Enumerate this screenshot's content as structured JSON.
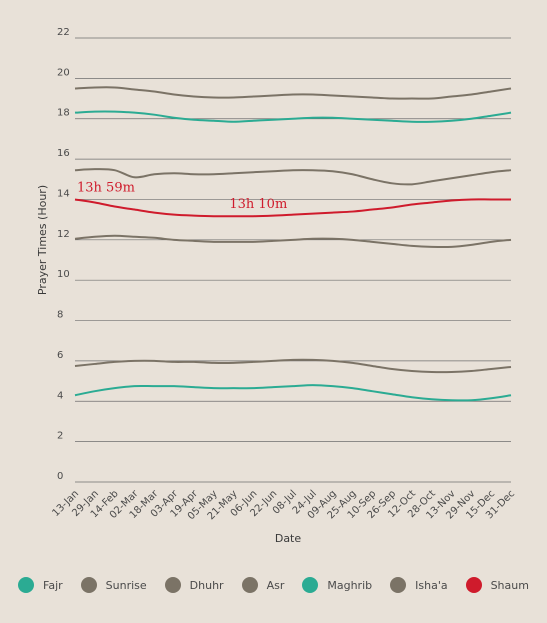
{
  "chart_data": {
    "type": "line",
    "xlabel": "Date",
    "ylabel": "Prayer Times (Hour)",
    "ylim": [
      0,
      22
    ],
    "yticks": [
      "0",
      "2",
      "4",
      "6",
      "8",
      "10",
      "12",
      "14",
      "16",
      "18",
      "20",
      "22"
    ],
    "x": [
      "13-Jan",
      "29-Jan",
      "14-Feb",
      "02-Mar",
      "18-Mar",
      "03-Apr",
      "19-Apr",
      "05-May",
      "21-May",
      "06-Jun",
      "22-Jun",
      "08-Jul",
      "24-Jul",
      "09-Aug",
      "25-Aug",
      "10-Sep",
      "26-Sep",
      "12-Oct",
      "28-Oct",
      "13-Nov",
      "29-Nov",
      "15-Dec",
      "31-Dec"
    ],
    "grid": true,
    "legend_position": "bottom",
    "series": [
      {
        "name": "Fajr",
        "color": "#2bab93",
        "values": [
          4.3,
          4.5,
          4.65,
          4.75,
          4.75,
          4.75,
          4.7,
          4.65,
          4.65,
          4.65,
          4.7,
          4.75,
          4.8,
          4.75,
          4.65,
          4.5,
          4.35,
          4.2,
          4.1,
          4.05,
          4.05,
          4.15,
          4.3
        ]
      },
      {
        "name": "Sunrise",
        "color": "#7b7366",
        "values": [
          5.75,
          5.85,
          5.95,
          6.0,
          6.0,
          5.95,
          5.95,
          5.9,
          5.9,
          5.95,
          6.0,
          6.05,
          6.05,
          6.0,
          5.9,
          5.75,
          5.6,
          5.5,
          5.45,
          5.45,
          5.5,
          5.6,
          5.7
        ]
      },
      {
        "name": "Dhuhr",
        "color": "#7b7366",
        "values": [
          12.05,
          12.15,
          12.2,
          12.15,
          12.1,
          12.0,
          11.95,
          11.9,
          11.9,
          11.9,
          11.95,
          12.0,
          12.05,
          12.05,
          12.0,
          11.9,
          11.8,
          11.7,
          11.65,
          11.65,
          11.75,
          11.9,
          12.0
        ]
      },
      {
        "name": "Asr",
        "color": "#7b7366",
        "values": [
          15.45,
          15.5,
          15.45,
          15.1,
          15.25,
          15.3,
          15.25,
          15.25,
          15.3,
          15.35,
          15.4,
          15.45,
          15.45,
          15.4,
          15.25,
          15.0,
          14.8,
          14.75,
          14.9,
          15.05,
          15.2,
          15.35,
          15.45
        ]
      },
      {
        "name": "Maghrib",
        "color": "#2bab93",
        "values": [
          18.3,
          18.35,
          18.35,
          18.3,
          18.2,
          18.05,
          17.95,
          17.9,
          17.85,
          17.9,
          17.95,
          18.0,
          18.05,
          18.05,
          18.0,
          17.95,
          17.9,
          17.85,
          17.85,
          17.9,
          18.0,
          18.15,
          18.3
        ]
      },
      {
        "name": "Isha'a",
        "color": "#7b7366",
        "values": [
          19.5,
          19.55,
          19.55,
          19.45,
          19.35,
          19.2,
          19.1,
          19.05,
          19.05,
          19.1,
          19.15,
          19.2,
          19.2,
          19.15,
          19.1,
          19.05,
          19.0,
          19.0,
          19.0,
          19.1,
          19.2,
          19.35,
          19.5
        ]
      },
      {
        "name": "Shaum",
        "color": "#cf1b2c",
        "values": [
          14.0,
          13.85,
          13.65,
          13.5,
          13.35,
          13.25,
          13.2,
          13.17,
          13.17,
          13.17,
          13.2,
          13.25,
          13.3,
          13.35,
          13.4,
          13.5,
          13.6,
          13.75,
          13.85,
          13.95,
          14.0,
          14.0,
          14.0
        ]
      }
    ],
    "annotations": [
      {
        "text": "13h 59m",
        "x": "13-Jan",
        "y": 14.0,
        "color": "#cf1b2c"
      },
      {
        "text": "13h 10m",
        "x": "06-Jun",
        "y": 13.17,
        "color": "#cf1b2c"
      }
    ]
  },
  "legend": [
    {
      "label": "Fajr",
      "color": "#2bab93"
    },
    {
      "label": "Sunrise",
      "color": "#7b7366"
    },
    {
      "label": "Dhuhr",
      "color": "#7b7366"
    },
    {
      "label": "Asr",
      "color": "#7b7366"
    },
    {
      "label": "Maghrib",
      "color": "#2bab93"
    },
    {
      "label": "Isha'a",
      "color": "#7b7366"
    },
    {
      "label": "Shaum",
      "color": "#cf1b2c"
    }
  ]
}
